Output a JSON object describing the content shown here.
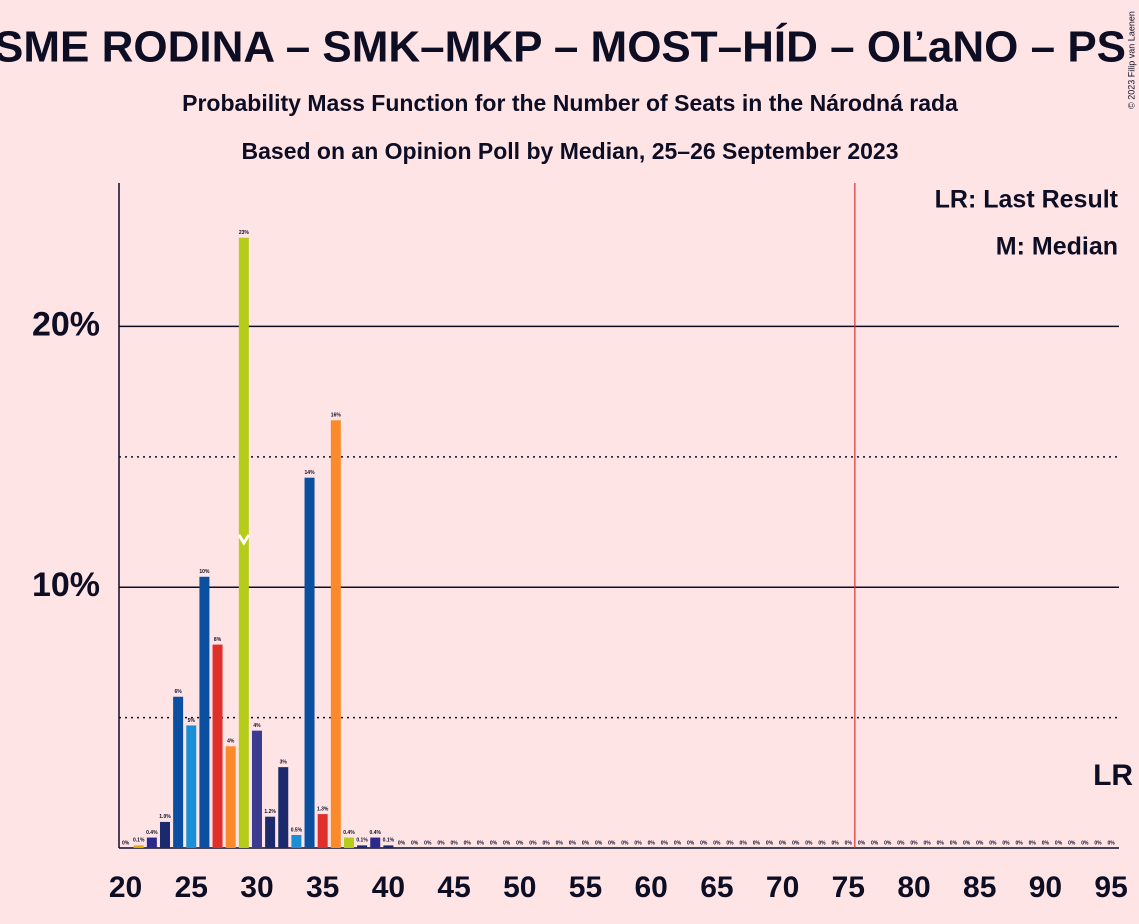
{
  "chart_data": {
    "type": "bar",
    "title": "SME RODINA – SMK–MKP – MOST–HÍD – OĽaNO – PS",
    "subtitle": "Probability Mass Function for the Number of Seats in the Národná rada",
    "subtitle2": "Based on an Opinion Poll by Median, 25–26 September 2023",
    "copyright": "© 2023 Filip van Laenen",
    "legend": [
      "LR: Last Result",
      "M: Median"
    ],
    "lr_label": "LR",
    "last_result": 95,
    "median": 29,
    "majority_line": 75.5,
    "x": [
      20,
      21,
      22,
      23,
      24,
      25,
      26,
      27,
      28,
      29,
      30,
      31,
      32,
      33,
      34,
      35,
      36,
      37,
      38,
      39,
      40,
      41,
      42,
      43,
      44,
      45,
      46,
      47,
      48,
      49,
      50,
      51,
      52,
      53,
      54,
      55,
      56,
      57,
      58,
      59,
      60,
      61,
      62,
      63,
      64,
      65,
      66,
      67,
      68,
      69,
      70,
      71,
      72,
      73,
      74,
      75,
      76,
      77,
      78,
      79,
      80,
      81,
      82,
      83,
      84,
      85,
      86,
      87,
      88,
      89,
      90,
      91,
      92,
      93,
      94,
      95
    ],
    "values": [
      0,
      0.1,
      0.4,
      1.0,
      5.8,
      4.7,
      10.4,
      7.8,
      3.9,
      23.4,
      4.5,
      1.2,
      3.1,
      0.5,
      14.2,
      1.3,
      16.4,
      0.4,
      0.1,
      0.4,
      0.1,
      0,
      0,
      0,
      0,
      0,
      0,
      0,
      0,
      0,
      0,
      0,
      0,
      0,
      0,
      0,
      0,
      0,
      0,
      0,
      0,
      0,
      0,
      0,
      0,
      0,
      0,
      0,
      0,
      0,
      0,
      0,
      0,
      0,
      0,
      0,
      0,
      0,
      0,
      0,
      0,
      0,
      0,
      0,
      0,
      0,
      0,
      0,
      0,
      0,
      0,
      0,
      0,
      0,
      0,
      0
    ],
    "value_labels": [
      "0%",
      "0.1%",
      "0.4%",
      "1.0%",
      "6%",
      "5%",
      "10%",
      "8%",
      "4%",
      "23%",
      "4%",
      "1.2%",
      "3%",
      "0.5%",
      "14%",
      "1.3%",
      "16%",
      "0.4%",
      "0.1%",
      "0.4%",
      "0.1%",
      "0%",
      "0%",
      "0%",
      "0%",
      "0%",
      "0%",
      "0%",
      "0%",
      "0%",
      "0%",
      "0%",
      "0%",
      "0%",
      "0%",
      "0%",
      "0%",
      "0%",
      "0%",
      "0%",
      "0%",
      "0%",
      "0%",
      "0%",
      "0%",
      "0%",
      "0%",
      "0%",
      "0%",
      "0%",
      "0%",
      "0%",
      "0%",
      "0%",
      "0%",
      "0%",
      "0%",
      "0%",
      "0%",
      "0%",
      "0%",
      "0%",
      "0%",
      "0%",
      "0%",
      "0%",
      "0%",
      "0%",
      "0%",
      "0%",
      "0%",
      "0%",
      "0%",
      "0%",
      "0%",
      "0%"
    ],
    "colors": [
      "#1a2a6c",
      "#e6a800",
      "#2a2a8c",
      "#1a2a6c",
      "#0a4fa0",
      "#1a8fd6",
      "#0a4fa0",
      "#e0302c",
      "#fb8a2a",
      "#b5cc18",
      "#3b3b8f",
      "#1a2a6c",
      "#1a2a6c",
      "#1a8fd6",
      "#0a4fa0",
      "#e0302c",
      "#fb8a2a",
      "#b5cc18",
      "#1a2a6c",
      "#2a2a8c",
      "#1a2a6c",
      "#1a2a6c",
      "#1a2a6c",
      "#1a2a6c",
      "#1a2a6c",
      "#1a2a6c",
      "#1a2a6c",
      "#1a2a6c",
      "#1a2a6c",
      "#1a2a6c",
      "#1a2a6c",
      "#1a2a6c",
      "#1a2a6c",
      "#1a2a6c",
      "#1a2a6c",
      "#1a2a6c",
      "#1a2a6c",
      "#1a2a6c",
      "#1a2a6c",
      "#1a2a6c",
      "#1a2a6c",
      "#1a2a6c",
      "#1a2a6c",
      "#1a2a6c",
      "#1a2a6c",
      "#1a2a6c",
      "#1a2a6c",
      "#1a2a6c",
      "#1a2a6c",
      "#1a2a6c",
      "#1a2a6c",
      "#1a2a6c",
      "#1a2a6c",
      "#1a2a6c",
      "#1a2a6c",
      "#1a2a6c",
      "#1a2a6c",
      "#1a2a6c",
      "#1a2a6c",
      "#1a2a6c",
      "#1a2a6c",
      "#1a2a6c",
      "#1a2a6c",
      "#1a2a6c",
      "#1a2a6c",
      "#1a2a6c",
      "#1a2a6c",
      "#1a2a6c",
      "#1a2a6c",
      "#1a2a6c",
      "#1a2a6c",
      "#1a2a6c",
      "#1a2a6c",
      "#1a2a6c",
      "#1a2a6c",
      "#1a2a6c"
    ],
    "xlim": [
      19.5,
      95.6
    ],
    "xticks": [
      20,
      25,
      30,
      35,
      40,
      45,
      50,
      55,
      60,
      65,
      70,
      75,
      80,
      85,
      90,
      95
    ],
    "ylim": [
      0,
      25.5
    ],
    "yticks": [
      {
        "value": 10,
        "label": "10%"
      },
      {
        "value": 20,
        "label": "20%"
      }
    ],
    "minor_yticks": [
      5,
      15
    ],
    "majority_color": "#e0302c"
  }
}
